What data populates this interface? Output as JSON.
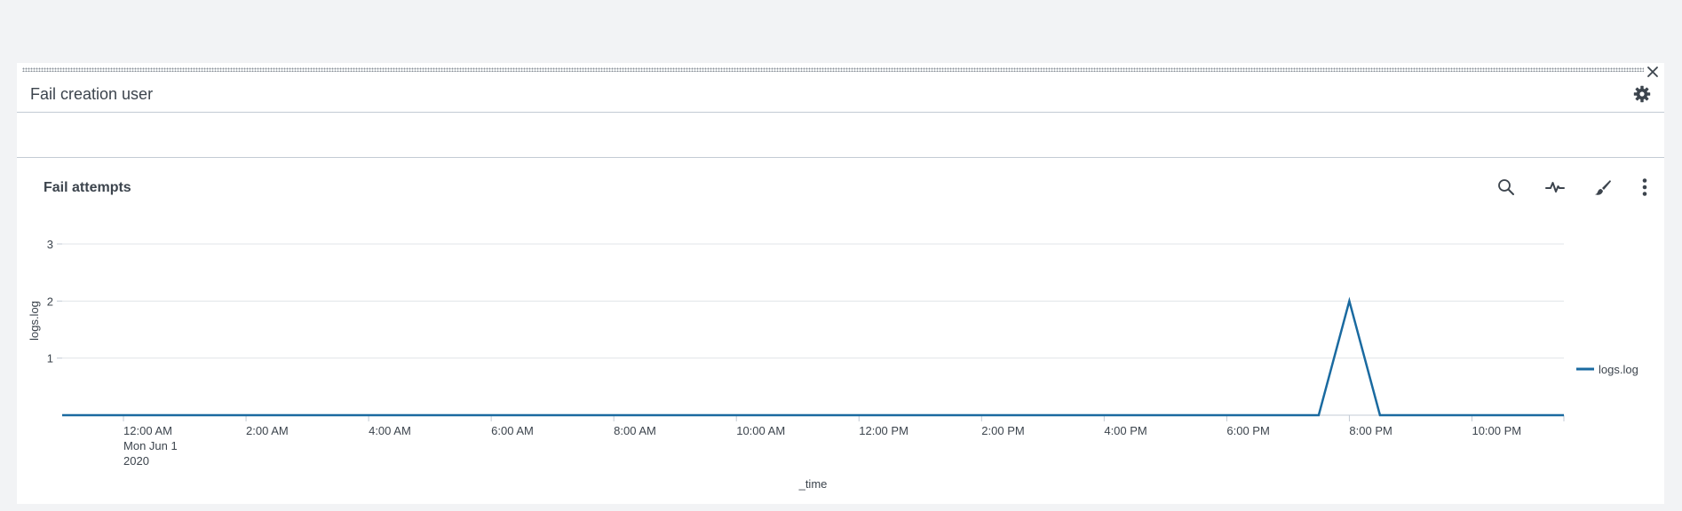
{
  "panel": {
    "title": "Fail creation user"
  },
  "viz": {
    "title": "Fail attempts",
    "tools": [
      "search-icon",
      "pulse-icon",
      "paintbrush-icon",
      "more-vertical-icon"
    ]
  },
  "colors": {
    "series": "#1a6aa0",
    "grid": "#e1e4e8",
    "axis": "#c3cbd4",
    "text": "#3c444d"
  },
  "chart_data": {
    "type": "line",
    "title": "",
    "xlabel": "_time",
    "ylabel": "logs.log",
    "ylim": [
      0,
      3
    ],
    "yticks": [
      1,
      2,
      3
    ],
    "grid": true,
    "legend_placement": "right",
    "x_start": "2020-05-31T23:00:00",
    "x_end": "2020-06-01T23:30:00",
    "x_ticks": [
      {
        "t": "2020-06-01T00:00:00",
        "label": [
          "12:00 AM",
          "Mon Jun 1",
          "2020"
        ]
      },
      {
        "t": "2020-06-01T02:00:00",
        "label": [
          "2:00 AM"
        ]
      },
      {
        "t": "2020-06-01T04:00:00",
        "label": [
          "4:00 AM"
        ]
      },
      {
        "t": "2020-06-01T06:00:00",
        "label": [
          "6:00 AM"
        ]
      },
      {
        "t": "2020-06-01T08:00:00",
        "label": [
          "8:00 AM"
        ]
      },
      {
        "t": "2020-06-01T10:00:00",
        "label": [
          "10:00 AM"
        ]
      },
      {
        "t": "2020-06-01T12:00:00",
        "label": [
          "12:00 PM"
        ]
      },
      {
        "t": "2020-06-01T14:00:00",
        "label": [
          "2:00 PM"
        ]
      },
      {
        "t": "2020-06-01T16:00:00",
        "label": [
          "4:00 PM"
        ]
      },
      {
        "t": "2020-06-01T18:00:00",
        "label": [
          "6:00 PM"
        ]
      },
      {
        "t": "2020-06-01T20:00:00",
        "label": [
          "8:00 PM"
        ]
      },
      {
        "t": "2020-06-01T22:00:00",
        "label": [
          "10:00 PM"
        ]
      }
    ],
    "series": [
      {
        "name": "logs.log",
        "points": [
          {
            "x": "2020-05-31T23:00:00",
            "y": 0
          },
          {
            "x": "2020-06-01T19:30:00",
            "y": 0
          },
          {
            "x": "2020-06-01T20:00:00",
            "y": 2
          },
          {
            "x": "2020-06-01T20:30:00",
            "y": 0
          },
          {
            "x": "2020-06-01T23:30:00",
            "y": 0
          }
        ]
      }
    ]
  }
}
